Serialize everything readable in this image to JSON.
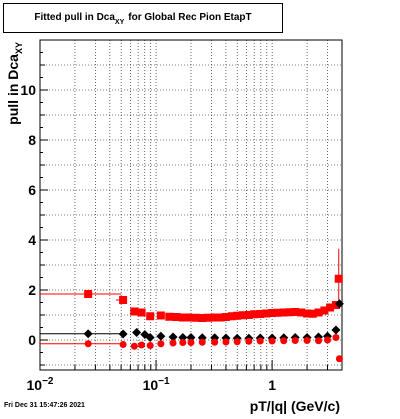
{
  "title": {
    "prefix": "Fitted pull in Dca",
    "subscript": "XY",
    "suffix": "for Global Rec Pion EtapT"
  },
  "footer": {
    "timestamp": "Fri Dec 31 15:47:26 2021"
  },
  "chart_data": {
    "type": "scatter",
    "xlabel": "pT/|q| (GeV/c)",
    "ylabel": "pull in Dca",
    "ylabel_sub": "XY",
    "x_scale": "log",
    "xlim": [
      0.01,
      4.0
    ],
    "ylim": [
      -1.2,
      12.0
    ],
    "grid": true,
    "x_ticks": [
      {
        "value": 0.01,
        "base": "10",
        "exp": "−2"
      },
      {
        "value": 0.1,
        "base": "10",
        "exp": "−1"
      },
      {
        "value": 1,
        "base": "1",
        "exp": ""
      }
    ],
    "y_ticks": [
      0,
      2,
      4,
      6,
      8,
      10
    ],
    "colors": {
      "sigma": "#ff0000",
      "mean": "#000000"
    },
    "series": [
      {
        "marker": "square",
        "color": "#ff0000",
        "points": [
          {
            "x": 0.026,
            "y": 1.84,
            "xerr": [
              0.01,
              0.05
            ]
          },
          {
            "x": 0.052,
            "y": 1.6,
            "xerr": [
              0.045,
              0.055
            ]
          },
          {
            "x": 0.065,
            "y": 1.14
          },
          {
            "x": 0.075,
            "y": 1.1
          },
          {
            "x": 0.089,
            "y": 0.95
          },
          {
            "x": 0.11,
            "y": 0.98
          },
          {
            "x": 0.13,
            "y": 0.93
          },
          {
            "x": 0.15,
            "y": 0.92
          },
          {
            "x": 0.17,
            "y": 0.9
          },
          {
            "x": 0.19,
            "y": 0.9
          },
          {
            "x": 0.22,
            "y": 0.89
          },
          {
            "x": 0.25,
            "y": 0.88
          },
          {
            "x": 0.28,
            "y": 0.89
          },
          {
            "x": 0.32,
            "y": 0.9
          },
          {
            "x": 0.36,
            "y": 0.9
          },
          {
            "x": 0.4,
            "y": 0.92
          },
          {
            "x": 0.45,
            "y": 0.95
          },
          {
            "x": 0.5,
            "y": 0.97
          },
          {
            "x": 0.56,
            "y": 0.99
          },
          {
            "x": 0.63,
            "y": 1.0
          },
          {
            "x": 0.7,
            "y": 1.03
          },
          {
            "x": 0.79,
            "y": 1.04
          },
          {
            "x": 0.89,
            "y": 1.06
          },
          {
            "x": 1.0,
            "y": 1.08
          },
          {
            "x": 1.12,
            "y": 1.09
          },
          {
            "x": 1.26,
            "y": 1.1
          },
          {
            "x": 1.41,
            "y": 1.11
          },
          {
            "x": 1.58,
            "y": 1.12
          },
          {
            "x": 1.78,
            "y": 1.1
          },
          {
            "x": 2.0,
            "y": 1.06
          },
          {
            "x": 2.24,
            "y": 1.05
          },
          {
            "x": 2.51,
            "y": 1.1
          },
          {
            "x": 2.82,
            "y": 1.18
          },
          {
            "x": 3.16,
            "y": 1.3
          },
          {
            "x": 3.55,
            "y": 1.4
          },
          {
            "x": 3.75,
            "y": 2.45,
            "yerr": 1.2
          }
        ]
      },
      {
        "marker": "diamond",
        "color": "#000000",
        "points": [
          {
            "x": 0.026,
            "y": 0.25,
            "xerr": [
              0.01,
              0.05
            ]
          },
          {
            "x": 0.052,
            "y": 0.24
          },
          {
            "x": 0.068,
            "y": 0.3
          },
          {
            "x": 0.08,
            "y": 0.22
          },
          {
            "x": 0.089,
            "y": 0.1
          },
          {
            "x": 0.11,
            "y": 0.15
          },
          {
            "x": 0.14,
            "y": 0.12
          },
          {
            "x": 0.17,
            "y": 0.1
          },
          {
            "x": 0.2,
            "y": 0.1
          },
          {
            "x": 0.25,
            "y": 0.09
          },
          {
            "x": 0.32,
            "y": 0.09
          },
          {
            "x": 0.4,
            "y": 0.08
          },
          {
            "x": 0.5,
            "y": 0.07
          },
          {
            "x": 0.63,
            "y": 0.07
          },
          {
            "x": 0.79,
            "y": 0.08
          },
          {
            "x": 1.0,
            "y": 0.08
          },
          {
            "x": 1.26,
            "y": 0.09
          },
          {
            "x": 1.58,
            "y": 0.1
          },
          {
            "x": 2.0,
            "y": 0.1
          },
          {
            "x": 2.51,
            "y": 0.12
          },
          {
            "x": 3.0,
            "y": 0.15
          },
          {
            "x": 3.55,
            "y": 0.4
          },
          {
            "x": 3.8,
            "y": 1.45
          }
        ]
      },
      {
        "marker": "circle",
        "color": "#ff0000",
        "points": [
          {
            "x": 0.026,
            "y": -0.15,
            "xerr": [
              0.01,
              0.05
            ]
          },
          {
            "x": 0.052,
            "y": -0.18
          },
          {
            "x": 0.065,
            "y": -0.25
          },
          {
            "x": 0.075,
            "y": -0.2
          },
          {
            "x": 0.089,
            "y": -0.22
          },
          {
            "x": 0.11,
            "y": -0.15
          },
          {
            "x": 0.14,
            "y": -0.12
          },
          {
            "x": 0.17,
            "y": -0.1
          },
          {
            "x": 0.2,
            "y": -0.1
          },
          {
            "x": 0.25,
            "y": -0.09
          },
          {
            "x": 0.32,
            "y": -0.09
          },
          {
            "x": 0.4,
            "y": -0.08
          },
          {
            "x": 0.5,
            "y": -0.07
          },
          {
            "x": 0.63,
            "y": -0.05
          },
          {
            "x": 0.79,
            "y": -0.04
          },
          {
            "x": 1.0,
            "y": -0.04
          },
          {
            "x": 1.26,
            "y": -0.03
          },
          {
            "x": 1.58,
            "y": -0.02
          },
          {
            "x": 2.0,
            "y": -0.02
          },
          {
            "x": 2.51,
            "y": -0.03
          },
          {
            "x": 3.0,
            "y": 0.0
          },
          {
            "x": 3.55,
            "y": 0.1
          },
          {
            "x": 3.8,
            "y": -0.75
          }
        ]
      }
    ]
  }
}
